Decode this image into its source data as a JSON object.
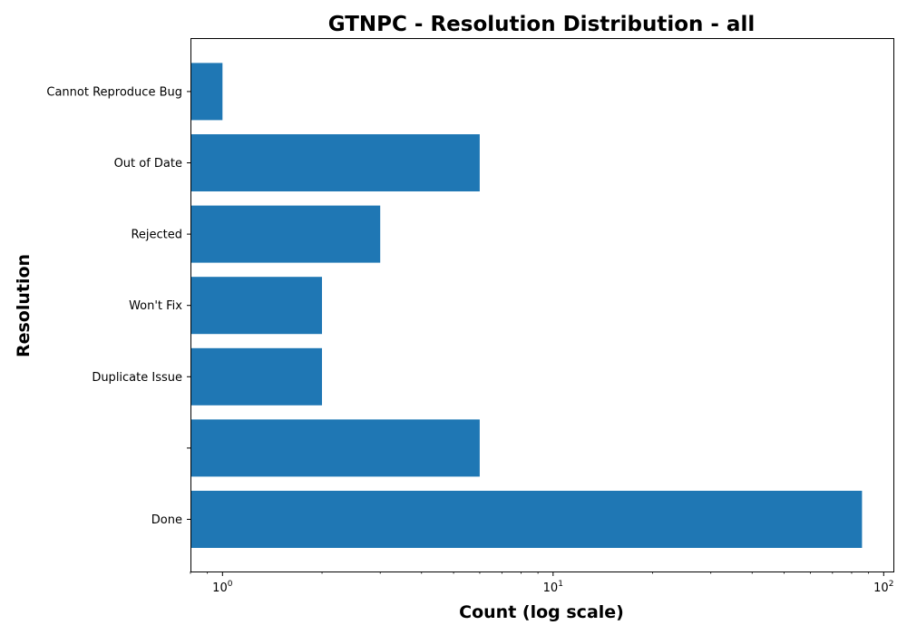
{
  "chart_data": {
    "type": "bar",
    "orientation": "horizontal",
    "title": "GTNPC - Resolution Distribution - all",
    "xlabel": "Count (log scale)",
    "ylabel": "Resolution",
    "x_scale": "log",
    "xlim": [
      0.8,
      107
    ],
    "categories": [
      "Done",
      "",
      "Duplicate Issue",
      "Won't Fix",
      "Rejected",
      "Out of Date",
      "Cannot Reproduce Bug"
    ],
    "values": [
      86,
      6,
      2,
      2,
      3,
      6,
      1
    ],
    "x_ticks": [
      {
        "base": "10",
        "exponent": "0",
        "value": 1
      },
      {
        "base": "10",
        "exponent": "1",
        "value": 10
      },
      {
        "base": "10",
        "exponent": "2",
        "value": 100
      }
    ],
    "bar_color": "#1f77b4",
    "grid": false
  }
}
